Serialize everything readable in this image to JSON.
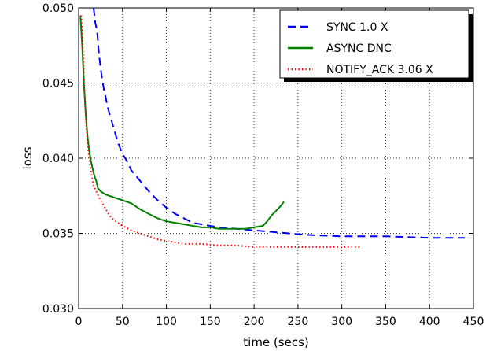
{
  "chart_data": {
    "type": "line",
    "xlabel": "time (secs)",
    "ylabel": "loss",
    "xlim": [
      0,
      450
    ],
    "ylim": [
      0.03,
      0.05
    ],
    "x_ticks": [
      "0",
      "50",
      "100",
      "150",
      "200",
      "250",
      "300",
      "350",
      "400",
      "450"
    ],
    "y_ticks": [
      "0.030",
      "0.035",
      "0.040",
      "0.045",
      "0.050"
    ],
    "grid": true,
    "legend_position": "top-right",
    "series": [
      {
        "name": "SYNC 1.0 X",
        "color": "#0000ff",
        "style": "dashed",
        "x": [
          17,
          19,
          21,
          23,
          25,
          27,
          29,
          31,
          33,
          35,
          40,
          45,
          50,
          55,
          60,
          70,
          80,
          90,
          100,
          110,
          120,
          130,
          140,
          150,
          160,
          180,
          200,
          220,
          240,
          260,
          300,
          350,
          400,
          440
        ],
        "y": [
          0.05,
          0.049,
          0.0485,
          0.047,
          0.046,
          0.0452,
          0.0445,
          0.044,
          0.0434,
          0.043,
          0.042,
          0.041,
          0.0403,
          0.0398,
          0.0392,
          0.0385,
          0.0378,
          0.0372,
          0.0367,
          0.0363,
          0.036,
          0.0357,
          0.0356,
          0.0355,
          0.0354,
          0.0353,
          0.0352,
          0.0351,
          0.035,
          0.0349,
          0.0348,
          0.0348,
          0.0347,
          0.0347
        ]
      },
      {
        "name": "ASYNC  DNC",
        "color": "#008000",
        "style": "solid",
        "x": [
          2,
          4,
          6,
          8,
          10,
          12,
          14,
          16,
          18,
          20,
          22,
          25,
          30,
          35,
          40,
          50,
          60,
          70,
          80,
          90,
          100,
          110,
          120,
          130,
          140,
          150,
          160,
          170,
          180,
          190,
          200,
          210,
          215,
          220,
          225,
          230,
          234
        ],
        "y": [
          0.0495,
          0.0475,
          0.045,
          0.043,
          0.0415,
          0.0405,
          0.0398,
          0.0393,
          0.0388,
          0.0385,
          0.038,
          0.0378,
          0.0376,
          0.0375,
          0.0374,
          0.0372,
          0.037,
          0.0366,
          0.0363,
          0.036,
          0.0358,
          0.0357,
          0.0356,
          0.0355,
          0.0354,
          0.0354,
          0.0353,
          0.0353,
          0.0353,
          0.0353,
          0.0354,
          0.0355,
          0.0358,
          0.0362,
          0.0365,
          0.0368,
          0.0371
        ]
      },
      {
        "name": "NOTIFY_ACK 3.06 X",
        "color": "#ff0000",
        "style": "dotted",
        "x": [
          3,
          5,
          7,
          9,
          11,
          13,
          15,
          17,
          20,
          25,
          30,
          35,
          40,
          45,
          50,
          60,
          70,
          80,
          90,
          100,
          110,
          120,
          140,
          160,
          180,
          200,
          220,
          250,
          280,
          300,
          320
        ],
        "y": [
          0.0495,
          0.047,
          0.044,
          0.042,
          0.0405,
          0.0395,
          0.0388,
          0.0382,
          0.0378,
          0.0372,
          0.0367,
          0.0362,
          0.0359,
          0.0357,
          0.0355,
          0.0352,
          0.035,
          0.0348,
          0.0346,
          0.0345,
          0.0344,
          0.0343,
          0.0343,
          0.0342,
          0.0342,
          0.0341,
          0.0341,
          0.0341,
          0.0341,
          0.0341,
          0.0341
        ]
      }
    ]
  }
}
